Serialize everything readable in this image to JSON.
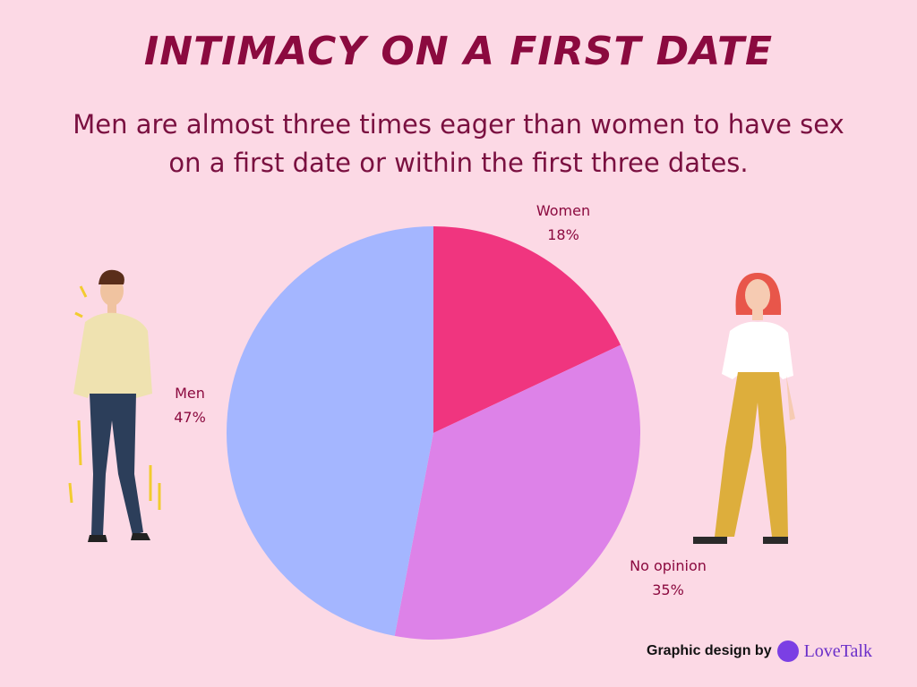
{
  "chart_data": {
    "type": "pie",
    "title": "INTIMACY ON A FIRST DATE",
    "subtitle": "Men are almost three times eager than women to have sex on a first date or within the first three dates.",
    "categories": [
      "Women",
      "No opinion",
      "Men"
    ],
    "values": [
      18,
      35,
      47
    ],
    "value_labels": [
      "18%",
      "35%",
      "47%"
    ],
    "colors": [
      "#f0357f",
      "#dd82e8",
      "#a4b6ff"
    ]
  },
  "footer": {
    "credit": "Graphic design by",
    "logo": "LoveTalk"
  }
}
